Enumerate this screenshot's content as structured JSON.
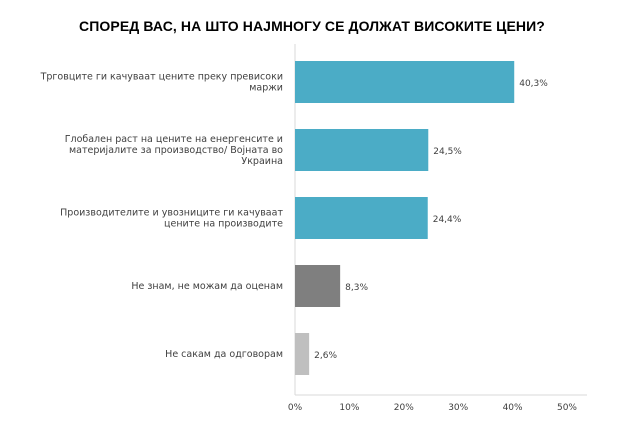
{
  "chart_data": {
    "type": "bar",
    "orientation": "horizontal",
    "title": "СПОРЕД ВАС, НА ШТО НАЈМНОГУ СЕ ДОЛЖАТ ВИСОКИТЕ ЦЕНИ?",
    "xlabel": "",
    "ylabel": "",
    "xlim": [
      0,
      50
    ],
    "xticks": [
      "0%",
      "10%",
      "20%",
      "30%",
      "40%",
      "50%"
    ],
    "grid": false,
    "legend": "none",
    "categories": [
      [
        "Трговците ги качуваат цените преку превисоки",
        "маржи"
      ],
      [
        "Глобален раст на цените на енергенсите и",
        "материјалите за производство/ Војната во",
        "Украина"
      ],
      [
        "Производителите и увозниците ги качуваат",
        "цените на производите"
      ],
      [
        "Не знам, не можам да оценам"
      ],
      [
        "Не сакам да одговорам"
      ]
    ],
    "values": [
      40.3,
      24.5,
      24.4,
      8.3,
      2.6
    ],
    "data_labels": [
      "40,3%",
      "24,5%",
      "24,4%",
      "8,3%",
      "2,6%"
    ],
    "bar_colors": [
      "#4bacc6",
      "#4bacc6",
      "#4bacc6",
      "#7f7f7f",
      "#bfbfbf"
    ]
  }
}
